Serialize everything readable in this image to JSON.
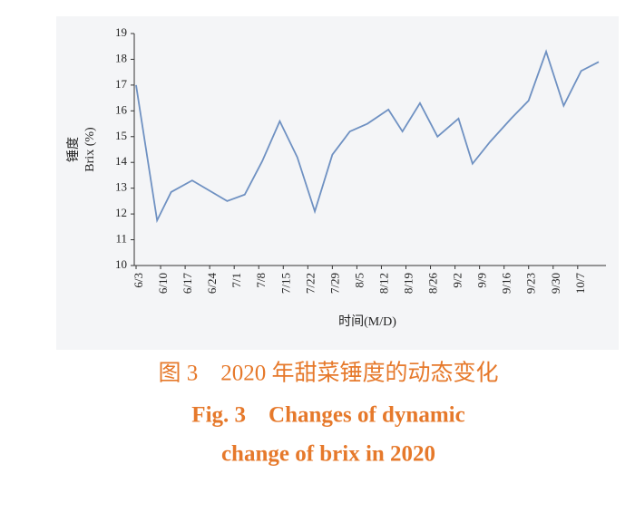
{
  "chart_data": {
    "type": "line",
    "x": [
      0,
      6,
      10,
      16,
      26,
      31,
      36,
      41,
      46,
      51,
      56,
      61,
      66,
      72,
      76,
      81,
      86,
      92,
      96,
      101,
      107,
      112,
      117,
      122,
      127,
      132
    ],
    "series": [
      {
        "name": "Brix",
        "color": "#6f91c2",
        "values": [
          17.0,
          11.75,
          12.85,
          13.3,
          12.5,
          12.75,
          14.05,
          15.6,
          14.2,
          12.1,
          14.3,
          15.2,
          15.5,
          16.05,
          15.2,
          16.3,
          15.0,
          15.7,
          13.95,
          14.8,
          15.7,
          16.4,
          18.3,
          16.2,
          17.55,
          17.9
        ]
      }
    ],
    "xlim": [
      0,
      132
    ],
    "xticks": [
      {
        "value": 0,
        "label": "6/3"
      },
      {
        "value": 7,
        "label": "6/10"
      },
      {
        "value": 14,
        "label": "6/17"
      },
      {
        "value": 21,
        "label": "6/24"
      },
      {
        "value": 28,
        "label": "7/1"
      },
      {
        "value": 35,
        "label": "7/8"
      },
      {
        "value": 42,
        "label": "7/15"
      },
      {
        "value": 49,
        "label": "7/22"
      },
      {
        "value": 56,
        "label": "7/29"
      },
      {
        "value": 63,
        "label": "8/5"
      },
      {
        "value": 70,
        "label": "8/12"
      },
      {
        "value": 77,
        "label": "8/19"
      },
      {
        "value": 84,
        "label": "8/26"
      },
      {
        "value": 91,
        "label": "9/2"
      },
      {
        "value": 98,
        "label": "9/9"
      },
      {
        "value": 105,
        "label": "9/16"
      },
      {
        "value": 112,
        "label": "9/23"
      },
      {
        "value": 119,
        "label": "9/30"
      },
      {
        "value": 126,
        "label": "10/7"
      }
    ],
    "ylim": [
      10,
      19
    ],
    "yticks": [
      10,
      11,
      12,
      13,
      14,
      15,
      16,
      17,
      18,
      19
    ],
    "y_label": [
      "锤度",
      "Brix (%)"
    ],
    "x_label": "时间(M/D)",
    "grid": false
  },
  "caption": [
    "图 3　2020 年甜菜锤度的动态变化",
    "Fig. 3　Changes of dynamic",
    "change of brix in 2020"
  ]
}
